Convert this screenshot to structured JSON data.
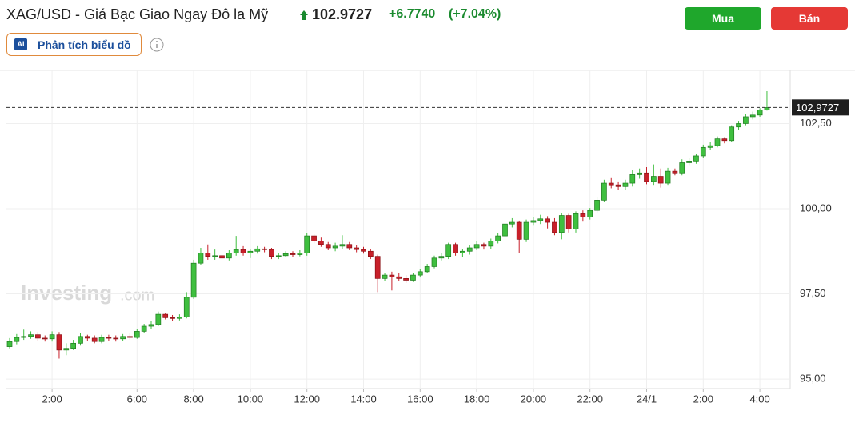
{
  "header": {
    "title": "XAG/USD - Giá Bạc Giao Ngay Đô la Mỹ",
    "price": "102.9727",
    "change": "+6.7740",
    "change_pct": "(+7.04%)",
    "buy": "Mua",
    "sell": "Bán",
    "ai_badge": "AI",
    "ai_button": "Phân tích biểu đồ",
    "watermark": "Investing",
    "watermark_suffix": ".com"
  },
  "chart_data": {
    "type": "candlestick",
    "categories": [
      null,
      null,
      null,
      null,
      null,
      null,
      "2:00",
      null,
      null,
      null,
      null,
      null,
      null,
      null,
      null,
      null,
      null,
      null,
      "6:00",
      null,
      null,
      null,
      null,
      null,
      null,
      null,
      "8:00",
      null,
      null,
      null,
      null,
      null,
      null,
      null,
      "10:00",
      null,
      null,
      null,
      null,
      null,
      null,
      null,
      "12:00",
      null,
      null,
      null,
      null,
      null,
      null,
      null,
      "14:00",
      null,
      null,
      null,
      null,
      null,
      null,
      null,
      "16:00",
      null,
      null,
      null,
      null,
      null,
      null,
      null,
      "18:00",
      null,
      null,
      null,
      null,
      null,
      null,
      null,
      "20:00",
      null,
      null,
      null,
      null,
      null,
      null,
      null,
      "22:00",
      null,
      null,
      null,
      null,
      null,
      null,
      null,
      "24/1",
      null,
      null,
      null,
      null,
      null,
      null,
      null,
      "2:00",
      null,
      null,
      null,
      null,
      null,
      null,
      null,
      "4:00",
      null
    ],
    "open": [
      95.95,
      96.1,
      96.22,
      96.25,
      96.3,
      96.2,
      96.18,
      96.3,
      95.85,
      95.9,
      96.05,
      96.25,
      96.2,
      96.1,
      96.22,
      96.2,
      96.18,
      96.25,
      96.22,
      96.4,
      96.55,
      96.6,
      96.9,
      96.8,
      96.78,
      96.82,
      97.4,
      98.4,
      98.7,
      98.6,
      98.62,
      98.55,
      98.7,
      98.8,
      98.7,
      98.75,
      98.82,
      98.8,
      98.6,
      98.62,
      98.68,
      98.65,
      98.7,
      99.2,
      99.05,
      98.95,
      98.85,
      98.9,
      98.95,
      98.85,
      98.8,
      98.75,
      98.6,
      97.95,
      98.05,
      98.0,
      97.95,
      97.9,
      98.05,
      98.15,
      98.3,
      98.55,
      98.6,
      98.95,
      98.7,
      98.75,
      98.85,
      98.95,
      98.9,
      99.05,
      99.2,
      99.55,
      99.6,
      99.1,
      99.6,
      99.65,
      99.7,
      99.6,
      99.3,
      99.8,
      99.4,
      99.85,
      99.75,
      99.95,
      100.25,
      100.75,
      100.7,
      100.65,
      100.75,
      101.0,
      101.05,
      100.8,
      100.95,
      100.75,
      101.1,
      101.05,
      101.35,
      101.4,
      101.55,
      101.8,
      101.85,
      102.05,
      102.0,
      102.4,
      102.5,
      102.7,
      102.75,
      102.9
    ],
    "high": [
      96.2,
      96.32,
      96.45,
      96.4,
      96.38,
      96.28,
      96.4,
      96.38,
      96.05,
      96.15,
      96.35,
      96.3,
      96.28,
      96.3,
      96.3,
      96.28,
      96.32,
      96.35,
      96.48,
      96.62,
      96.7,
      96.98,
      96.95,
      96.88,
      96.9,
      97.55,
      98.5,
      98.85,
      98.95,
      98.8,
      98.7,
      98.78,
      99.2,
      98.9,
      98.82,
      98.9,
      98.88,
      98.85,
      98.7,
      98.75,
      98.75,
      98.78,
      99.28,
      99.25,
      99.15,
      99.02,
      99.0,
      99.22,
      99.02,
      98.92,
      98.88,
      98.82,
      98.65,
      98.12,
      98.15,
      98.1,
      98.05,
      98.12,
      98.22,
      98.38,
      98.62,
      98.7,
      99.0,
      99.0,
      98.82,
      98.92,
      99.05,
      99.0,
      99.12,
      99.28,
      99.7,
      99.72,
      99.65,
      99.68,
      99.75,
      99.82,
      99.78,
      99.72,
      99.88,
      99.85,
      99.92,
      99.95,
      100.02,
      100.35,
      100.85,
      100.92,
      100.8,
      100.85,
      101.15,
      101.18,
      101.22,
      101.3,
      101.18,
      101.2,
      101.18,
      101.45,
      101.5,
      101.62,
      101.88,
      101.95,
      102.12,
      102.1,
      102.45,
      102.58,
      102.78,
      102.85,
      102.95,
      103.45
    ],
    "low": [
      95.9,
      96.02,
      96.15,
      96.18,
      96.12,
      96.1,
      96.1,
      95.6,
      95.7,
      95.85,
      95.98,
      96.12,
      96.05,
      96.05,
      96.12,
      96.1,
      96.12,
      96.15,
      96.18,
      96.35,
      96.48,
      96.55,
      96.75,
      96.7,
      96.72,
      96.78,
      97.35,
      98.35,
      98.5,
      98.5,
      98.42,
      98.48,
      98.62,
      98.62,
      98.55,
      98.68,
      98.72,
      98.52,
      98.52,
      98.58,
      98.58,
      98.6,
      98.62,
      98.98,
      98.88,
      98.78,
      98.75,
      98.82,
      98.78,
      98.72,
      98.68,
      98.52,
      97.55,
      97.88,
      97.6,
      97.88,
      97.82,
      97.85,
      97.98,
      98.1,
      98.25,
      98.48,
      98.52,
      98.62,
      98.58,
      98.65,
      98.78,
      98.8,
      98.82,
      98.98,
      99.12,
      99.45,
      98.7,
      99.02,
      99.5,
      99.55,
      99.42,
      99.22,
      99.1,
      99.3,
      99.3,
      99.62,
      99.68,
      99.88,
      100.2,
      100.6,
      100.55,
      100.55,
      100.65,
      100.88,
      100.72,
      100.7,
      100.62,
      100.7,
      100.98,
      100.98,
      101.28,
      101.32,
      101.48,
      101.72,
      101.8,
      101.92,
      101.95,
      102.32,
      102.45,
      102.62,
      102.7,
      102.88
    ],
    "close": [
      96.1,
      96.22,
      96.25,
      96.3,
      96.2,
      96.18,
      96.3,
      95.85,
      95.9,
      96.05,
      96.25,
      96.2,
      96.1,
      96.22,
      96.2,
      96.18,
      96.25,
      96.22,
      96.4,
      96.55,
      96.6,
      96.9,
      96.8,
      96.78,
      96.82,
      97.4,
      98.4,
      98.7,
      98.6,
      98.62,
      98.55,
      98.7,
      98.8,
      98.7,
      98.75,
      98.82,
      98.8,
      98.6,
      98.62,
      98.68,
      98.65,
      98.7,
      99.2,
      99.05,
      98.95,
      98.85,
      98.9,
      98.95,
      98.85,
      98.8,
      98.75,
      98.6,
      97.95,
      98.05,
      98.0,
      97.95,
      97.9,
      98.05,
      98.15,
      98.3,
      98.55,
      98.6,
      98.95,
      98.7,
      98.75,
      98.85,
      98.95,
      98.9,
      99.05,
      99.2,
      99.55,
      99.6,
      99.1,
      99.6,
      99.65,
      99.7,
      99.6,
      99.3,
      99.8,
      99.4,
      99.85,
      99.75,
      99.95,
      100.25,
      100.75,
      100.7,
      100.65,
      100.75,
      101.0,
      101.05,
      100.8,
      100.95,
      100.75,
      101.1,
      101.05,
      101.35,
      101.4,
      101.55,
      101.8,
      101.85,
      102.05,
      102.0,
      102.4,
      102.5,
      102.7,
      102.75,
      102.9,
      102.97
    ],
    "up_color": "#3fbf3f",
    "down_color": "#c8202a",
    "ylim": [
      94.72,
      104.06
    ],
    "yticks": [
      {
        "value": 95,
        "label": "95,00"
      },
      {
        "value": 97.5,
        "label": "97,50"
      },
      {
        "value": 100,
        "label": "100,00"
      },
      {
        "value": 102.5,
        "label": "102,50"
      }
    ],
    "last_price": {
      "value": 102.9727,
      "label": "102,9727"
    },
    "grid": true
  }
}
